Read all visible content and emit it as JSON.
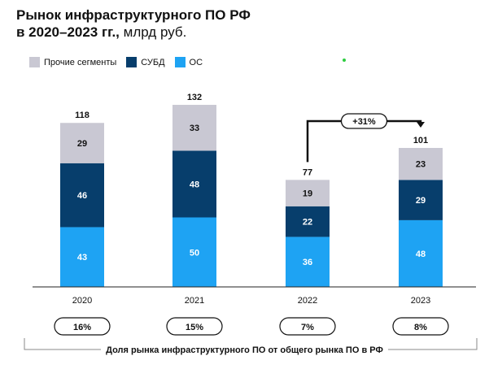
{
  "title": {
    "line1": "Рынок инфраструктурного ПО РФ",
    "line2_bold": "в 2020–2023 гг.,",
    "line2_unit": " млрд руб."
  },
  "colors": {
    "other": "#c9c8d3",
    "dbms": "#073e6c",
    "os": "#1ea3f3",
    "accent_dot": "#2ecc40"
  },
  "chart_data": {
    "type": "bar",
    "stacked": true,
    "categories": [
      "2020",
      "2021",
      "2022",
      "2023"
    ],
    "series": [
      {
        "name": "ОС",
        "values": [
          43,
          50,
          36,
          48
        ]
      },
      {
        "name": "СУБД",
        "values": [
          46,
          48,
          22,
          29
        ]
      },
      {
        "name": "Прочие сегменты",
        "values": [
          29,
          33,
          19,
          23
        ]
      }
    ],
    "totals": [
      118,
      132,
      77,
      101
    ],
    "legend": [
      "Прочие сегменты",
      "СУБД",
      "ОС"
    ],
    "legend_position": "top-left",
    "annotation": {
      "text": "+31%",
      "from": "2022",
      "to": "2023"
    },
    "shares": [
      "16%",
      "15%",
      "7%",
      "8%"
    ],
    "shares_label": "Доля рынка инфраструктурного ПО от общего рынка ПО в РФ",
    "ylim": [
      0,
      132
    ],
    "grid": false
  }
}
